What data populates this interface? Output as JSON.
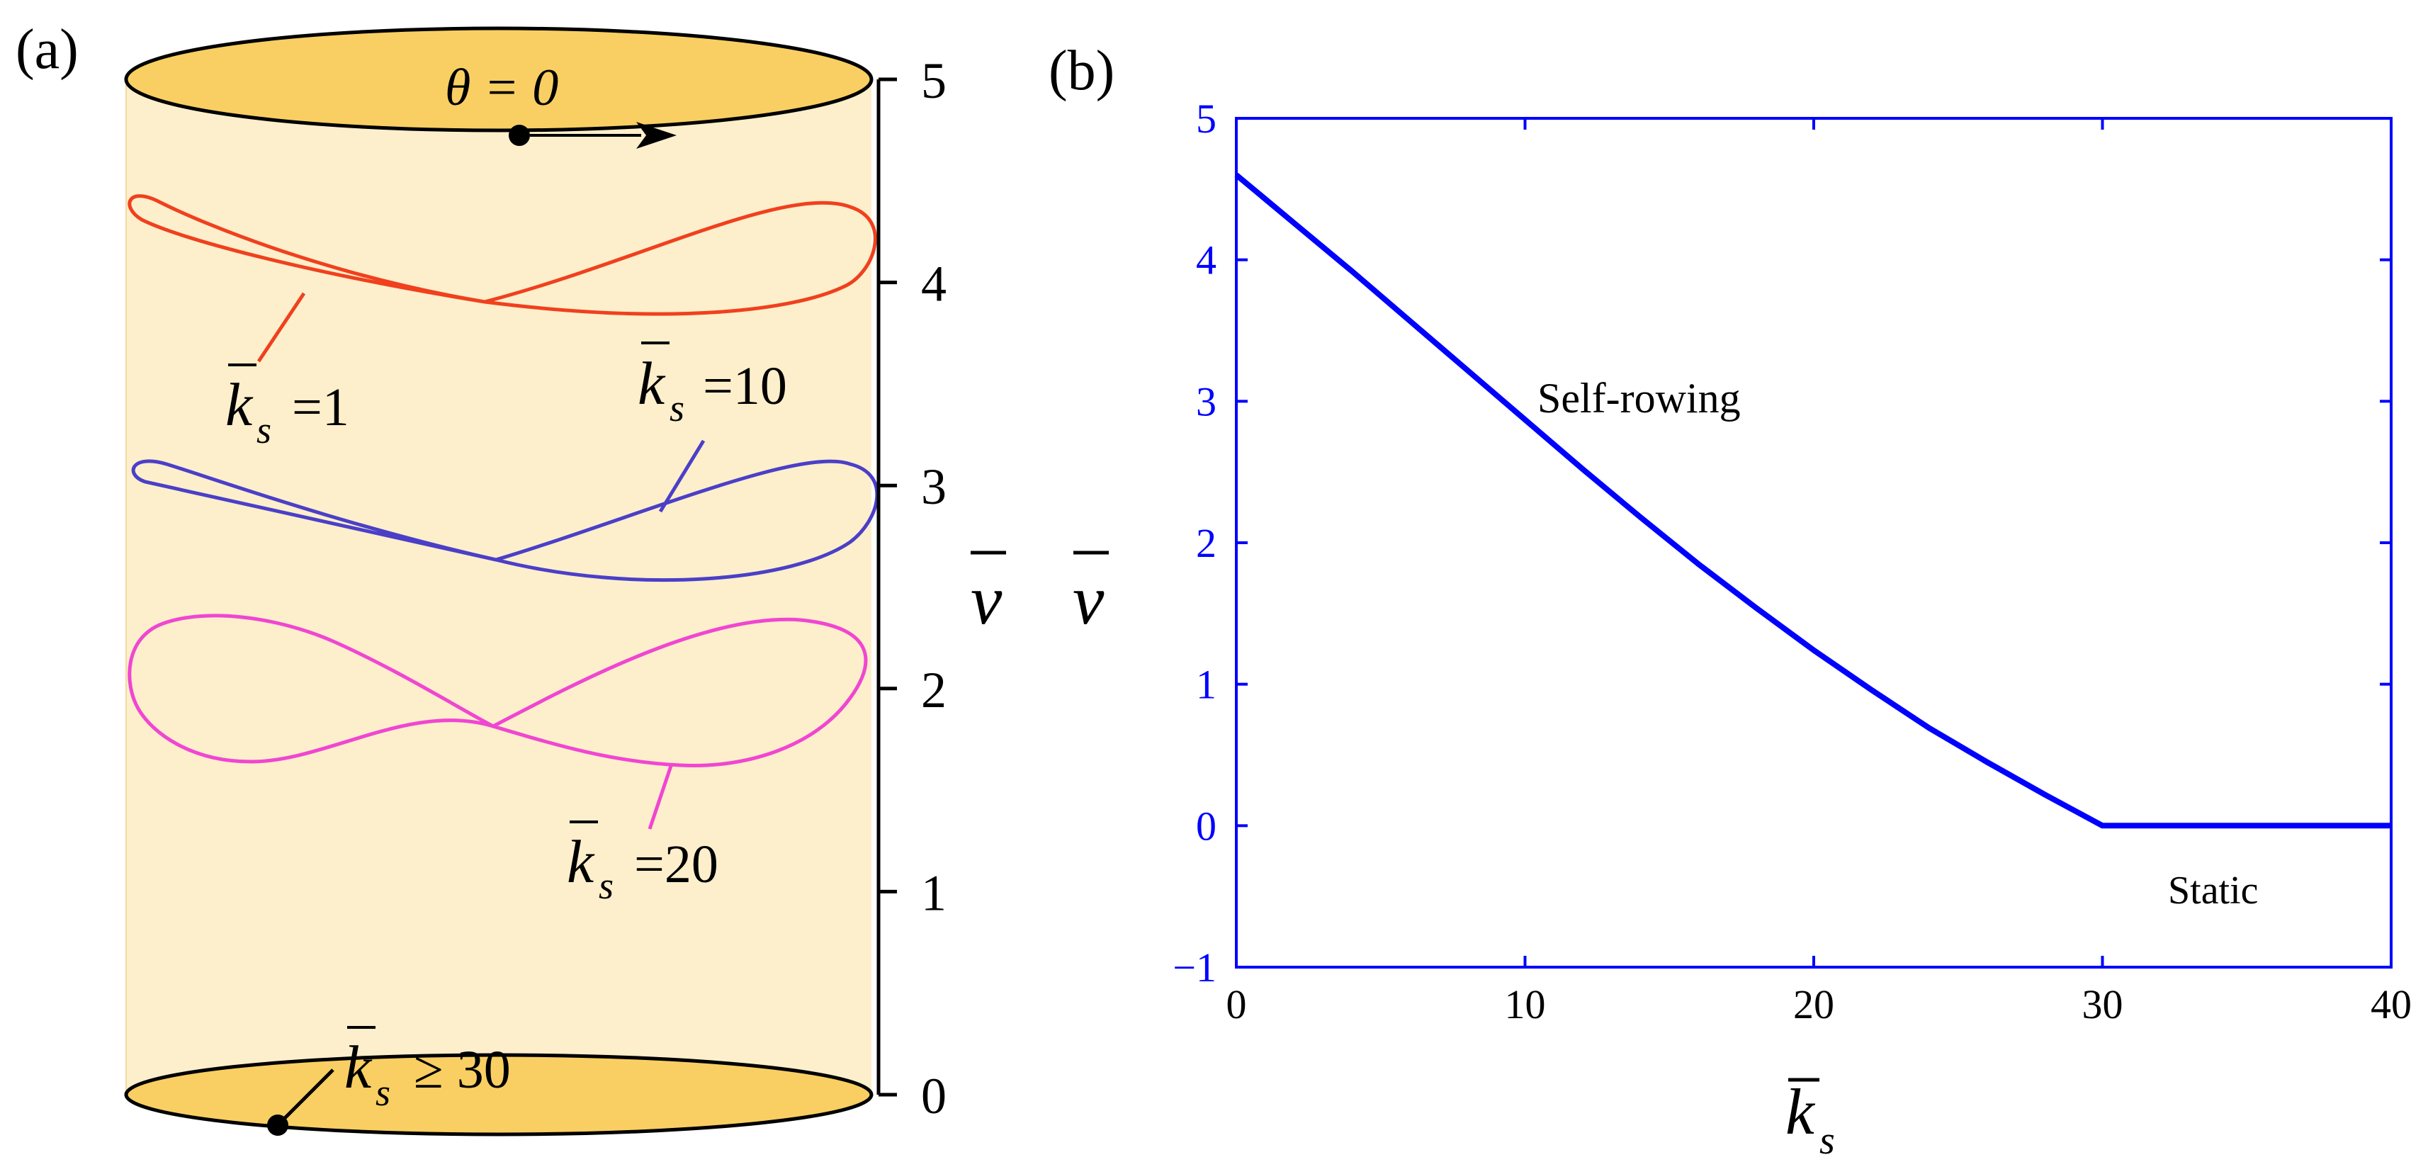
{
  "panel_a": {
    "label": "(a)",
    "theta_label": "θ = 0",
    "axis_label": "v",
    "ticks": [
      "0",
      "1",
      "2",
      "3",
      "4",
      "5"
    ],
    "annotations": [
      {
        "k": "k",
        "sub": "s",
        "rel": "=1"
      },
      {
        "k": "k",
        "sub": "s",
        "rel": "=10"
      },
      {
        "k": "k",
        "sub": "s",
        "rel": "=20"
      },
      {
        "k": "k",
        "sub": "s",
        "rel": "≥ 30"
      }
    ],
    "colors": {
      "cylinder_fill": "#FDEFCB",
      "cap_fill": "#F9CF63",
      "k1": "#F0401E",
      "k10": "#4B3FC8",
      "k20": "#F046D2"
    }
  },
  "panel_b": {
    "label": "(b)",
    "ylabel": "v",
    "xlabel_k": "k",
    "xlabel_sub": "s",
    "annotations": {
      "self_rowing": "Self-rowing",
      "static": "Static"
    }
  },
  "chart_data": [
    {
      "type": "line",
      "panel": "(a)",
      "description_axis": "v",
      "ylim": [
        0,
        5
      ],
      "y_ticks": [
        0,
        1,
        2,
        3,
        4,
        5
      ],
      "series": [
        {
          "name": "k_s = 1",
          "center_v": 4.2,
          "color": "#F0401E"
        },
        {
          "name": "k_s = 10",
          "center_v": 2.8,
          "color": "#4B3FC8"
        },
        {
          "name": "k_s = 20",
          "center_v": 2.0,
          "color": "#F046D2"
        },
        {
          "name": "k_s ≥ 30",
          "center_v": 0.0,
          "color": "#000000"
        }
      ]
    },
    {
      "type": "line",
      "panel": "(b)",
      "xlim": [
        0,
        40
      ],
      "ylim": [
        -1,
        5
      ],
      "x_ticks": [
        0,
        10,
        20,
        30,
        40
      ],
      "y_ticks": [
        -1,
        0,
        1,
        2,
        3,
        4,
        5
      ],
      "grid": false,
      "color": "#0000FF",
      "series": [
        {
          "x": [
            0,
            2,
            4,
            6,
            8,
            10,
            12,
            14,
            16,
            18,
            20,
            22,
            24,
            26,
            28,
            30,
            32,
            34,
            36,
            38,
            40
          ],
          "y": [
            4.6,
            4.26,
            3.92,
            3.57,
            3.22,
            2.87,
            2.52,
            2.18,
            1.85,
            1.54,
            1.24,
            0.96,
            0.69,
            0.45,
            0.22,
            0.0,
            0.0,
            0.0,
            0.0,
            0.0,
            0.0
          ]
        }
      ]
    }
  ]
}
